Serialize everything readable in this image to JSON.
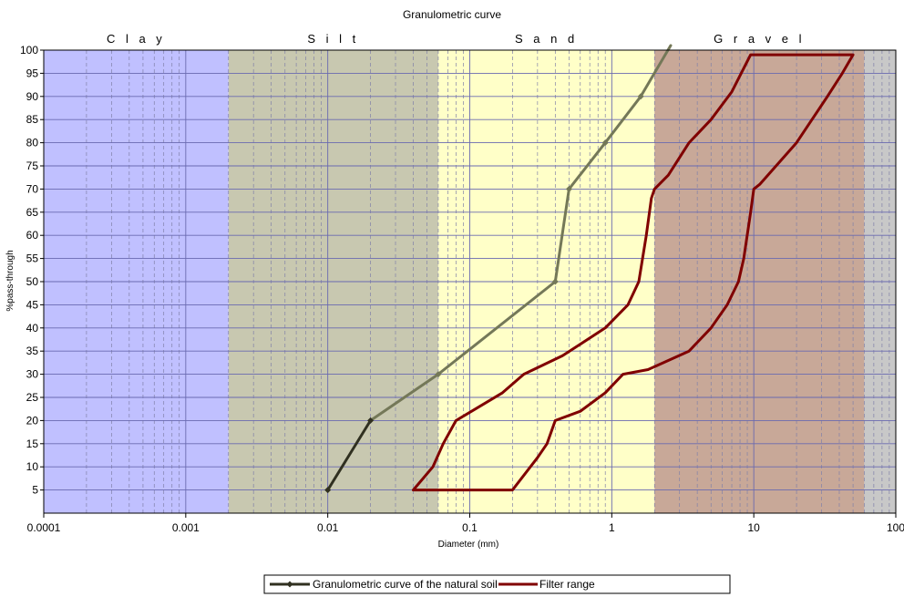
{
  "chart_data": {
    "type": "line",
    "title": "Granulometric curve",
    "xlabel": "Diameter (mm)",
    "ylabel": "%pass-through",
    "x_scale": "log",
    "xlim": [
      0.0001,
      100
    ],
    "ylim": [
      0,
      100
    ],
    "x_ticks": [
      "0.0001",
      "0.001",
      "0.01",
      "0.1",
      "1",
      "10",
      "100"
    ],
    "y_ticks": [
      "5",
      "10",
      "15",
      "20",
      "25",
      "30",
      "35",
      "40",
      "45",
      "50",
      "55",
      "60",
      "65",
      "70",
      "75",
      "80",
      "85",
      "90",
      "95",
      "100"
    ],
    "grid": true,
    "legend_position": "bottom-center",
    "zones": [
      {
        "label": "Clay",
        "from": 0.0001,
        "to": 0.002,
        "color": "#c0c0ff"
      },
      {
        "label": "Silt",
        "from": 0.002,
        "to": 0.06,
        "color": "#c8c8b0"
      },
      {
        "label": "Sand",
        "from": 0.06,
        "to": 2,
        "color": "#ffffc8"
      },
      {
        "label": "Gravel",
        "from": 2,
        "to": 60,
        "color": "#c8a898"
      },
      {
        "label": "",
        "from": 60,
        "to": 100,
        "color": "#c8c8c8"
      }
    ],
    "series": [
      {
        "name": "Granulometric curve of the natural soil",
        "color": "#747858",
        "color_start": "#303020",
        "markers": true,
        "points": [
          {
            "x": 0.01,
            "y": 5
          },
          {
            "x": 0.02,
            "y": 20
          },
          {
            "x": 0.06,
            "y": 30
          },
          {
            "x": 0.4,
            "y": 50
          },
          {
            "x": 0.5,
            "y": 70
          },
          {
            "x": 0.9,
            "y": 80
          },
          {
            "x": 1.6,
            "y": 90
          },
          {
            "x": 2.6,
            "y": 101
          }
        ]
      },
      {
        "name": "Filter range",
        "color": "#800000",
        "markers": false,
        "closed": true,
        "points": [
          {
            "x": 0.04,
            "y": 5
          },
          {
            "x": 0.055,
            "y": 10
          },
          {
            "x": 0.065,
            "y": 15
          },
          {
            "x": 0.08,
            "y": 20
          },
          {
            "x": 0.17,
            "y": 26
          },
          {
            "x": 0.24,
            "y": 30
          },
          {
            "x": 0.45,
            "y": 34
          },
          {
            "x": 0.9,
            "y": 40
          },
          {
            "x": 1.3,
            "y": 45
          },
          {
            "x": 1.55,
            "y": 50
          },
          {
            "x": 1.75,
            "y": 60
          },
          {
            "x": 1.9,
            "y": 68
          },
          {
            "x": 2.0,
            "y": 70
          },
          {
            "x": 2.5,
            "y": 73
          },
          {
            "x": 3.5,
            "y": 80
          },
          {
            "x": 5.0,
            "y": 85
          },
          {
            "x": 7.0,
            "y": 91
          },
          {
            "x": 9.5,
            "y": 99
          },
          {
            "x": 50,
            "y": 99
          },
          {
            "x": 42,
            "y": 95
          },
          {
            "x": 33,
            "y": 90
          },
          {
            "x": 20,
            "y": 80
          },
          {
            "x": 11,
            "y": 71
          },
          {
            "x": 10,
            "y": 70
          },
          {
            "x": 9.5,
            "y": 65
          },
          {
            "x": 8.5,
            "y": 55
          },
          {
            "x": 7.8,
            "y": 50
          },
          {
            "x": 6.5,
            "y": 45
          },
          {
            "x": 5.0,
            "y": 40
          },
          {
            "x": 3.5,
            "y": 35
          },
          {
            "x": 1.8,
            "y": 31
          },
          {
            "x": 1.2,
            "y": 30
          },
          {
            "x": 0.9,
            "y": 26
          },
          {
            "x": 0.6,
            "y": 22
          },
          {
            "x": 0.4,
            "y": 20
          },
          {
            "x": 0.35,
            "y": 15
          },
          {
            "x": 0.3,
            "y": 12
          },
          {
            "x": 0.2,
            "y": 5
          }
        ]
      }
    ]
  }
}
